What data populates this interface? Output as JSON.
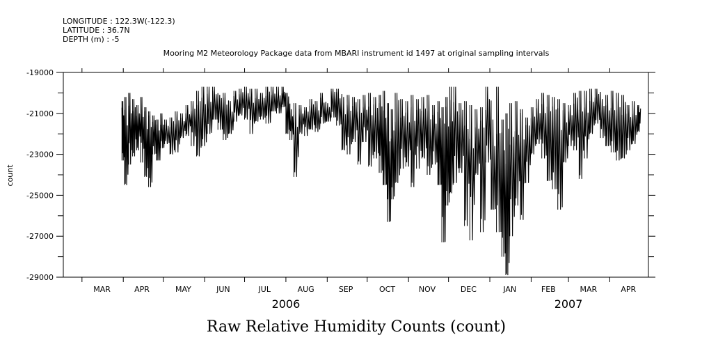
{
  "header": {
    "longitude": "LONGITUDE : 122.3W(-122.3)",
    "latitude": "LATITUDE : 36.7N",
    "depth": "DEPTH (m) : -5",
    "plot_title": "Mooring M2 Meteorology Package data from MBARI instrument id 1497 at original sampling intervals"
  },
  "footer": {
    "variable_title": "Raw Relative Humidity Counts (count)"
  },
  "chart_data": {
    "type": "line",
    "title": "Mooring M2 Meteorology Package data from MBARI instrument id 1497 at original sampling intervals",
    "xlabel": "",
    "ylabel": "count",
    "ylim": [
      -29000,
      -19000
    ],
    "y_ticks": [
      -19000,
      -21000,
      -23000,
      -25000,
      -27000,
      -29000
    ],
    "y_tick_labels": [
      "-19000",
      "-21000",
      "-23000",
      "-25000",
      "-27000",
      "-29000"
    ],
    "x_range": [
      "2006-02-15",
      "2007-04-30"
    ],
    "x_month_labels": [
      {
        "label": "MAR",
        "date": "2006-03-16"
      },
      {
        "label": "APR",
        "date": "2006-04-15"
      },
      {
        "label": "MAY",
        "date": "2006-05-16"
      },
      {
        "label": "JUN",
        "date": "2006-06-15"
      },
      {
        "label": "JUL",
        "date": "2006-07-16"
      },
      {
        "label": "AUG",
        "date": "2006-08-16"
      },
      {
        "label": "SEP",
        "date": "2006-09-15"
      },
      {
        "label": "OCT",
        "date": "2006-10-16"
      },
      {
        "label": "NOV",
        "date": "2006-11-15"
      },
      {
        "label": "DEC",
        "date": "2006-12-16"
      },
      {
        "label": "JAN",
        "date": "2007-01-16"
      },
      {
        "label": "FEB",
        "date": "2007-02-14"
      },
      {
        "label": "MAR",
        "date": "2007-03-16"
      },
      {
        "label": "APR",
        "date": "2007-04-15"
      }
    ],
    "x_year_labels": [
      {
        "label": "2006",
        "date": "2006-08-01"
      },
      {
        "label": "2007",
        "date": "2007-03-01"
      }
    ],
    "series": [
      {
        "color": "#000000",
        "envelope": [
          {
            "date": "2006-03-31",
            "min": -23300,
            "max": -20400
          },
          {
            "date": "2006-04-02",
            "min": -24500,
            "max": -20200
          },
          {
            "date": "2006-04-05",
            "min": -23500,
            "max": -20000
          },
          {
            "date": "2006-04-08",
            "min": -23100,
            "max": -20300
          },
          {
            "date": "2006-04-11",
            "min": -22800,
            "max": -20600
          },
          {
            "date": "2006-04-14",
            "min": -23400,
            "max": -20200
          },
          {
            "date": "2006-04-17",
            "min": -24100,
            "max": -20700
          },
          {
            "date": "2006-04-20",
            "min": -24600,
            "max": -20900
          },
          {
            "date": "2006-04-23",
            "min": -23000,
            "max": -21100
          },
          {
            "date": "2006-04-26",
            "min": -23300,
            "max": -21300
          },
          {
            "date": "2006-04-29",
            "min": -22700,
            "max": -21000
          },
          {
            "date": "2006-05-02",
            "min": -22500,
            "max": -21300
          },
          {
            "date": "2006-05-06",
            "min": -23000,
            "max": -21200
          },
          {
            "date": "2006-05-10",
            "min": -22900,
            "max": -20900
          },
          {
            "date": "2006-05-14",
            "min": -22200,
            "max": -21000
          },
          {
            "date": "2006-05-18",
            "min": -22100,
            "max": -20600
          },
          {
            "date": "2006-05-22",
            "min": -22600,
            "max": -20400
          },
          {
            "date": "2006-05-26",
            "min": -23100,
            "max": -19900
          },
          {
            "date": "2006-05-30",
            "min": -22600,
            "max": -19700
          },
          {
            "date": "2006-06-03",
            "min": -22000,
            "max": -19700
          },
          {
            "date": "2006-06-07",
            "min": -21300,
            "max": -19700
          },
          {
            "date": "2006-06-11",
            "min": -21800,
            "max": -20100
          },
          {
            "date": "2006-06-15",
            "min": -22300,
            "max": -20000
          },
          {
            "date": "2006-06-19",
            "min": -22000,
            "max": -20400
          },
          {
            "date": "2006-06-23",
            "min": -21400,
            "max": -19900
          },
          {
            "date": "2006-06-27",
            "min": -21100,
            "max": -19800
          },
          {
            "date": "2006-07-01",
            "min": -21300,
            "max": -19700
          },
          {
            "date": "2006-07-05",
            "min": -22000,
            "max": -19800
          },
          {
            "date": "2006-07-09",
            "min": -21400,
            "max": -19800
          },
          {
            "date": "2006-07-13",
            "min": -21300,
            "max": -20000
          },
          {
            "date": "2006-07-17",
            "min": -21500,
            "max": -19700
          },
          {
            "date": "2006-07-21",
            "min": -20900,
            "max": -19700
          },
          {
            "date": "2006-07-25",
            "min": -21000,
            "max": -19700
          },
          {
            "date": "2006-07-29",
            "min": -20700,
            "max": -19700
          },
          {
            "date": "2006-08-01",
            "min": -22000,
            "max": -20000
          },
          {
            "date": "2006-08-04",
            "min": -22300,
            "max": -20800
          },
          {
            "date": "2006-08-07",
            "min": -24100,
            "max": -20500
          },
          {
            "date": "2006-08-11",
            "min": -22000,
            "max": -20600
          },
          {
            "date": "2006-08-15",
            "min": -22100,
            "max": -20700
          },
          {
            "date": "2006-08-19",
            "min": -21800,
            "max": -20300
          },
          {
            "date": "2006-08-23",
            "min": -21900,
            "max": -20400
          },
          {
            "date": "2006-08-27",
            "min": -21500,
            "max": -20000
          },
          {
            "date": "2006-08-31",
            "min": -21400,
            "max": -20500
          },
          {
            "date": "2006-09-04",
            "min": -21200,
            "max": -19800
          },
          {
            "date": "2006-09-08",
            "min": -21600,
            "max": -19800
          },
          {
            "date": "2006-09-12",
            "min": -22800,
            "max": -20200
          },
          {
            "date": "2006-09-16",
            "min": -23000,
            "max": -20100
          },
          {
            "date": "2006-09-20",
            "min": -22400,
            "max": -20200
          },
          {
            "date": "2006-09-24",
            "min": -23500,
            "max": -20300
          },
          {
            "date": "2006-09-28",
            "min": -22400,
            "max": -20100
          },
          {
            "date": "2006-10-02",
            "min": -23600,
            "max": -20000
          },
          {
            "date": "2006-10-06",
            "min": -23200,
            "max": -20200
          },
          {
            "date": "2006-10-10",
            "min": -23900,
            "max": -20100
          },
          {
            "date": "2006-10-13",
            "min": -24500,
            "max": -19900
          },
          {
            "date": "2006-10-16",
            "min": -26300,
            "max": -20500
          },
          {
            "date": "2006-10-19",
            "min": -25200,
            "max": -20800
          },
          {
            "date": "2006-10-22",
            "min": -24400,
            "max": -20000
          },
          {
            "date": "2006-10-26",
            "min": -23700,
            "max": -20300
          },
          {
            "date": "2006-10-30",
            "min": -23600,
            "max": -20400
          },
          {
            "date": "2006-11-03",
            "min": -24600,
            "max": -20100
          },
          {
            "date": "2006-11-07",
            "min": -23700,
            "max": -20300
          },
          {
            "date": "2006-11-11",
            "min": -23200,
            "max": -20200
          },
          {
            "date": "2006-11-15",
            "min": -24000,
            "max": -20100
          },
          {
            "date": "2006-11-19",
            "min": -23500,
            "max": -20600
          },
          {
            "date": "2006-11-23",
            "min": -24500,
            "max": -20400
          },
          {
            "date": "2006-11-26",
            "min": -27300,
            "max": -20700
          },
          {
            "date": "2006-11-29",
            "min": -25500,
            "max": -20200
          },
          {
            "date": "2006-12-02",
            "min": -24900,
            "max": -19700
          },
          {
            "date": "2006-12-05",
            "min": -24400,
            "max": -19700
          },
          {
            "date": "2006-12-09",
            "min": -23900,
            "max": -20500
          },
          {
            "date": "2006-12-13",
            "min": -26500,
            "max": -20400
          },
          {
            "date": "2006-12-17",
            "min": -27200,
            "max": -20600
          },
          {
            "date": "2006-12-21",
            "min": -24000,
            "max": -20800
          },
          {
            "date": "2006-12-25",
            "min": -26800,
            "max": -20700
          },
          {
            "date": "2006-12-29",
            "min": -23400,
            "max": -19700
          },
          {
            "date": "2007-01-02",
            "min": -25700,
            "max": -21300
          },
          {
            "date": "2007-01-06",
            "min": -26800,
            "max": -19700
          },
          {
            "date": "2007-01-10",
            "min": -28000,
            "max": -21300
          },
          {
            "date": "2007-01-13",
            "min": -28900,
            "max": -21000
          },
          {
            "date": "2007-01-16",
            "min": -27000,
            "max": -20500
          },
          {
            "date": "2007-01-20",
            "min": -25500,
            "max": -20400
          },
          {
            "date": "2007-01-24",
            "min": -26200,
            "max": -20800
          },
          {
            "date": "2007-01-28",
            "min": -24400,
            "max": -21200
          },
          {
            "date": "2007-02-01",
            "min": -23000,
            "max": -20700
          },
          {
            "date": "2007-02-05",
            "min": -22500,
            "max": -20300
          },
          {
            "date": "2007-02-09",
            "min": -23200,
            "max": -20000
          },
          {
            "date": "2007-02-13",
            "min": -24300,
            "max": -20100
          },
          {
            "date": "2007-02-17",
            "min": -24700,
            "max": -20200
          },
          {
            "date": "2007-02-21",
            "min": -25700,
            "max": -20300
          },
          {
            "date": "2007-02-25",
            "min": -23400,
            "max": -20500
          },
          {
            "date": "2007-03-01",
            "min": -22600,
            "max": -20600
          },
          {
            "date": "2007-03-05",
            "min": -22800,
            "max": -20000
          },
          {
            "date": "2007-03-09",
            "min": -24200,
            "max": -19900
          },
          {
            "date": "2007-03-13",
            "min": -23200,
            "max": -19900
          },
          {
            "date": "2007-03-17",
            "min": -22000,
            "max": -19800
          },
          {
            "date": "2007-03-21",
            "min": -21500,
            "max": -19800
          },
          {
            "date": "2007-03-25",
            "min": -22200,
            "max": -20300
          },
          {
            "date": "2007-03-29",
            "min": -22600,
            "max": -20100
          },
          {
            "date": "2007-04-02",
            "min": -22900,
            "max": -19900
          },
          {
            "date": "2007-04-06",
            "min": -23300,
            "max": -20000
          },
          {
            "date": "2007-04-10",
            "min": -23200,
            "max": -20100
          },
          {
            "date": "2007-04-14",
            "min": -22800,
            "max": -20600
          },
          {
            "date": "2007-04-18",
            "min": -22500,
            "max": -20400
          },
          {
            "date": "2007-04-22",
            "min": -21900,
            "max": -20600
          }
        ]
      }
    ]
  }
}
